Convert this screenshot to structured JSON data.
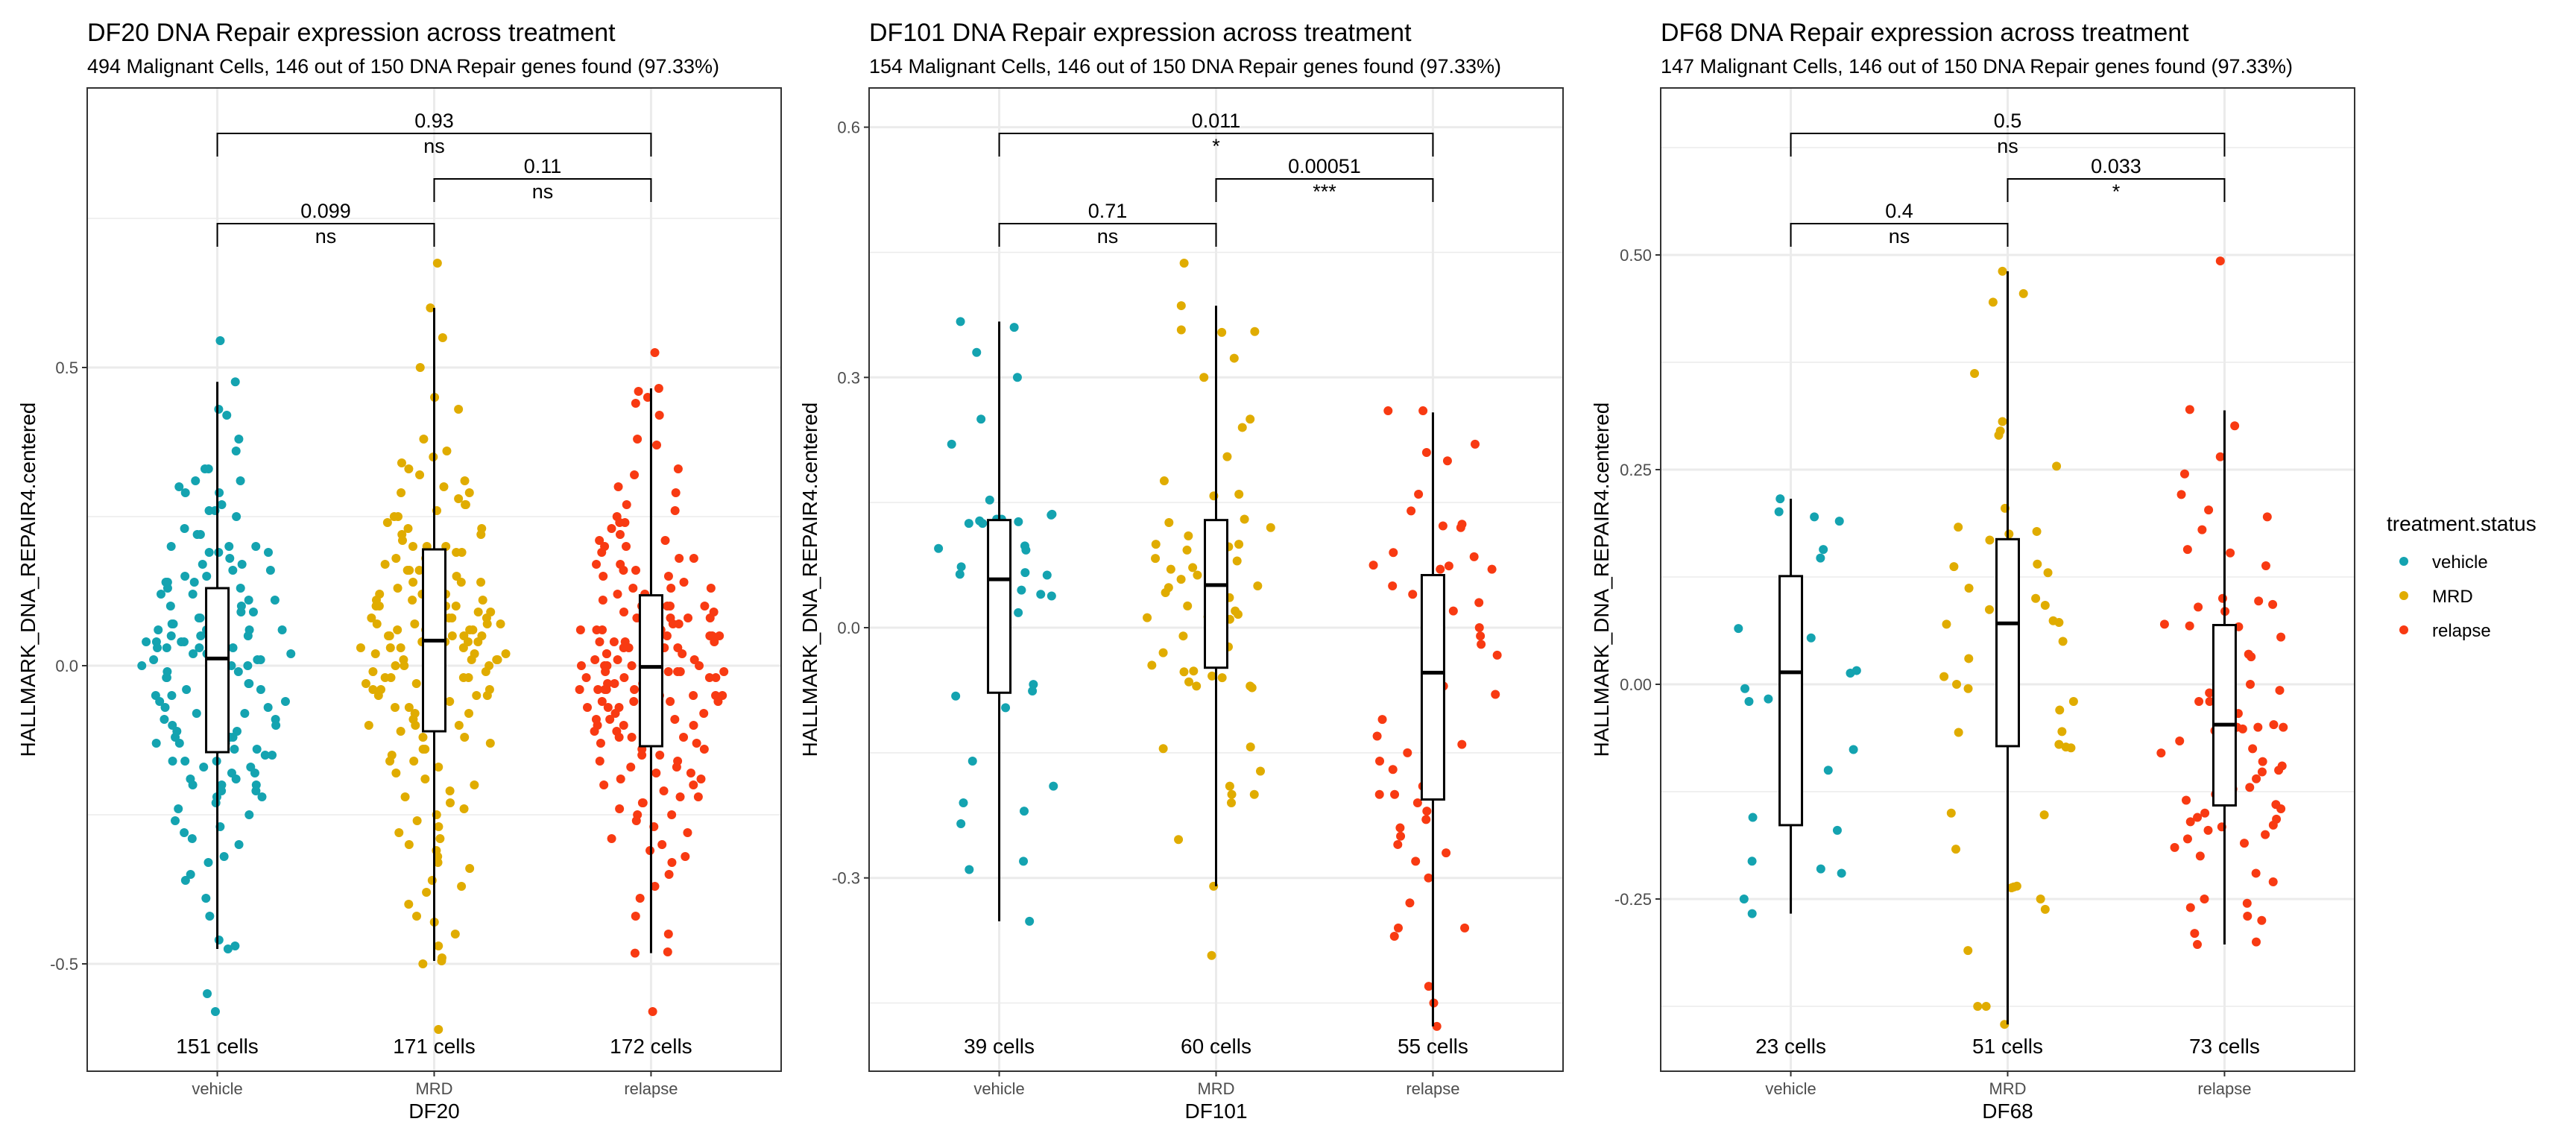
{
  "legend": {
    "title": "treatment.status",
    "items": [
      {
        "label": "vehicle",
        "color": "#14A3B0"
      },
      {
        "label": "MRD",
        "color": "#E0AC00"
      },
      {
        "label": "relapse",
        "color": "#F83A12"
      }
    ]
  },
  "chart_data": [
    {
      "type": "box+jitter",
      "title": "DF20 DNA Repair expression across treatment",
      "subtitle": "494 Malignant Cells, 146 out of 150 DNA Repair genes found (97.33%)",
      "xlabel": "DF20",
      "ylabel": "HALLMARK_DNA_REPAIR4.centered",
      "categories": [
        "vehicle",
        "MRD",
        "relapse"
      ],
      "ylim": [
        -0.61,
        0.93
      ],
      "yticks": [
        -0.5,
        0.0,
        0.5
      ],
      "ytick_labels": [
        "-0.5",
        "0.0",
        "0.5"
      ],
      "minor_grid": [
        -0.25,
        0.25,
        0.75
      ],
      "cell_counts": [
        "151 cells",
        "171 cells",
        "172 cells"
      ],
      "boxes": [
        {
          "group": "vehicle",
          "lower_whisker": -0.475,
          "q1": -0.145,
          "median": 0.012,
          "q3": 0.13,
          "upper_whisker": 0.476
        },
        {
          "group": "MRD",
          "lower_whisker": -0.495,
          "q1": -0.11,
          "median": 0.042,
          "q3": 0.195,
          "upper_whisker": 0.6
        },
        {
          "group": "relapse",
          "lower_whisker": -0.482,
          "q1": -0.135,
          "median": -0.002,
          "q3": 0.118,
          "upper_whisker": 0.465
        }
      ],
      "comparisons": [
        {
          "groups": [
            "vehicle",
            "MRD"
          ],
          "p": "0.099",
          "signif": "ns"
        },
        {
          "groups": [
            "MRD",
            "relapse"
          ],
          "p": "0.11",
          "signif": "ns"
        },
        {
          "groups": [
            "vehicle",
            "relapse"
          ],
          "p": "0.93",
          "signif": "ns"
        }
      ],
      "points": {
        "vehicle": [
          0.545,
          0.476,
          0.43,
          0.42,
          0.38,
          0.33,
          0.33,
          0.31,
          0.31,
          0.3,
          0.29,
          0.27,
          0.26,
          0.25,
          0.22,
          0.2,
          0.2,
          0.19,
          0.19,
          0.19,
          0.18,
          0.17,
          0.16,
          0.16,
          0.15,
          0.14,
          0.14,
          0.13,
          0.12,
          0.11,
          0.11,
          0.1,
          0.1,
          0.09,
          0.08,
          0.08,
          0.07,
          0.07,
          0.06,
          0.06,
          0.06,
          0.05,
          0.05,
          0.05,
          0.04,
          0.04,
          0.04,
          0.03,
          0.03,
          0.03,
          0.02,
          0.02,
          0.02,
          0.01,
          0.01,
          0.01,
          0.0,
          0.0,
          -0.01,
          -0.01,
          -0.02,
          -0.03,
          -0.03,
          -0.04,
          -0.05,
          -0.05,
          -0.06,
          -0.07,
          -0.08,
          -0.09,
          -0.1,
          -0.1,
          -0.11,
          -0.12,
          -0.12,
          -0.13,
          -0.13,
          -0.14,
          -0.14,
          -0.15,
          -0.15,
          -0.16,
          -0.16,
          -0.17,
          -0.17,
          -0.18,
          -0.19,
          -0.2,
          -0.2,
          -0.21,
          -0.21,
          -0.22,
          -0.23,
          -0.24,
          -0.26,
          -0.27,
          -0.29,
          -0.3,
          -0.32,
          -0.33,
          -0.35,
          -0.36,
          -0.39,
          -0.42,
          -0.46,
          -0.47,
          -0.475,
          -0.55,
          -0.58,
          0.36,
          0.29,
          0.23,
          0.12,
          0.09,
          -0.02,
          -0.06,
          -0.11,
          -0.18,
          -0.25,
          -0.28,
          0.26,
          0.2,
          0.15,
          0.05,
          0.02,
          -0.08,
          -0.13,
          -0.19,
          0.11,
          0.07,
          -0.04,
          -0.1,
          -0.14,
          -0.2,
          0.17,
          0.13,
          0.0,
          -0.07,
          -0.16,
          0.22,
          0.03,
          -0.03,
          -0.12,
          -0.22,
          0.08,
          -0.09,
          0.14,
          -0.05,
          0.04,
          -0.01,
          0.06
        ],
        "MRD": [
          0.675,
          0.6,
          0.55,
          0.5,
          0.45,
          0.43,
          0.38,
          0.36,
          0.34,
          0.33,
          0.32,
          0.31,
          0.3,
          0.29,
          0.28,
          0.27,
          0.26,
          0.25,
          0.24,
          0.23,
          0.22,
          0.21,
          0.2,
          0.2,
          0.19,
          0.18,
          0.18,
          0.17,
          0.16,
          0.16,
          0.15,
          0.14,
          0.14,
          0.13,
          0.12,
          0.12,
          0.11,
          0.1,
          0.1,
          0.09,
          0.09,
          0.08,
          0.08,
          0.07,
          0.07,
          0.06,
          0.06,
          0.05,
          0.05,
          0.05,
          0.04,
          0.04,
          0.03,
          0.03,
          0.02,
          0.02,
          0.01,
          0.01,
          0.0,
          0.0,
          -0.01,
          -0.02,
          -0.02,
          -0.03,
          -0.04,
          -0.04,
          -0.05,
          -0.06,
          -0.07,
          -0.08,
          -0.09,
          -0.1,
          -0.1,
          -0.11,
          -0.12,
          -0.13,
          -0.14,
          -0.15,
          -0.16,
          -0.17,
          -0.18,
          -0.19,
          -0.2,
          -0.21,
          -0.22,
          -0.23,
          -0.24,
          -0.25,
          -0.26,
          -0.27,
          -0.28,
          -0.29,
          -0.3,
          -0.31,
          -0.32,
          -0.33,
          -0.34,
          -0.36,
          -0.37,
          -0.38,
          -0.4,
          -0.42,
          -0.43,
          -0.45,
          -0.47,
          -0.49,
          -0.495,
          -0.5,
          -0.61,
          0.35,
          0.29,
          0.25,
          0.22,
          0.19,
          0.17,
          0.15,
          0.13,
          0.11,
          0.09,
          0.07,
          0.06,
          0.04,
          0.03,
          0.02,
          0.01,
          -0.01,
          -0.03,
          -0.05,
          -0.06,
          -0.08,
          -0.1,
          -0.12,
          0.27,
          0.23,
          0.2,
          0.16,
          0.12,
          0.08,
          0.05,
          0.0,
          -0.02,
          -0.04,
          -0.07,
          -0.09,
          -0.14,
          -0.16,
          0.14,
          0.1,
          0.06,
          0.03,
          -0.01,
          -0.05,
          0.18,
          0.12,
          0.04,
          -0.03,
          0.08,
          0.02,
          -0.06,
          0.1,
          0.0,
          0.05,
          -0.02,
          0.15,
          0.07,
          0.01,
          0.11
        ],
        "relapse": [
          0.525,
          0.465,
          0.46,
          0.45,
          0.44,
          0.42,
          0.38,
          0.37,
          0.33,
          0.32,
          0.3,
          0.27,
          0.26,
          0.25,
          0.24,
          0.23,
          0.22,
          0.21,
          0.2,
          0.19,
          0.18,
          0.17,
          0.17,
          0.16,
          0.15,
          0.14,
          0.13,
          0.12,
          0.12,
          0.11,
          0.1,
          0.1,
          0.09,
          0.08,
          0.08,
          0.07,
          0.06,
          0.06,
          0.05,
          0.05,
          0.04,
          0.04,
          0.03,
          0.03,
          0.02,
          0.02,
          0.01,
          0.01,
          0.0,
          0.0,
          -0.01,
          -0.01,
          -0.02,
          -0.02,
          -0.03,
          -0.04,
          -0.04,
          -0.05,
          -0.06,
          -0.06,
          -0.07,
          -0.08,
          -0.09,
          -0.1,
          -0.1,
          -0.11,
          -0.12,
          -0.13,
          -0.14,
          -0.15,
          -0.15,
          -0.16,
          -0.17,
          -0.18,
          -0.19,
          -0.2,
          -0.21,
          -0.22,
          -0.23,
          -0.24,
          -0.25,
          -0.26,
          -0.27,
          -0.28,
          -0.3,
          -0.31,
          -0.32,
          -0.33,
          -0.35,
          -0.37,
          -0.39,
          -0.42,
          -0.45,
          -0.48,
          -0.482,
          -0.58,
          0.29,
          0.24,
          0.2,
          0.16,
          0.13,
          0.09,
          0.07,
          0.05,
          0.03,
          0.01,
          -0.01,
          -0.03,
          -0.05,
          -0.07,
          -0.09,
          -0.11,
          -0.13,
          -0.16,
          -0.19,
          -0.22,
          -0.25,
          -0.29,
          0.21,
          0.15,
          0.11,
          0.08,
          0.04,
          0.02,
          0.0,
          -0.02,
          -0.04,
          -0.06,
          -0.08,
          -0.12,
          -0.14,
          -0.17,
          -0.2,
          -0.23,
          0.18,
          0.1,
          0.06,
          0.03,
          0.01,
          -0.01,
          -0.03,
          -0.05,
          -0.07,
          -0.09,
          -0.12,
          -0.18,
          0.13,
          0.08,
          0.04,
          0.0,
          -0.04,
          -0.1,
          0.06,
          0.02,
          -0.02,
          -0.06,
          0.1,
          0.01,
          -0.03,
          0.05,
          -0.01,
          0.03,
          0.0,
          -0.05,
          0.04,
          0.02,
          -0.04
        ]
      }
    },
    {
      "type": "box+jitter",
      "title": "DF101 DNA Repair expression across treatment",
      "subtitle": "154 Malignant Cells, 146 out of 150 DNA Repair genes found (97.33%)",
      "xlabel": "DF101",
      "ylabel": "HALLMARK_DNA_REPAIR4.centered",
      "categories": [
        "vehicle",
        "MRD",
        "relapse"
      ],
      "ylim": [
        -0.54,
        0.68
      ],
      "yticks": [
        -0.3,
        0.0,
        0.3,
        0.6
      ],
      "ytick_labels": [
        "-0.3",
        "0.0",
        "0.3",
        "0.6"
      ],
      "minor_grid": [
        -0.45,
        -0.15,
        0.15,
        0.45
      ],
      "cell_counts": [
        "39 cells",
        "60 cells",
        "55 cells"
      ],
      "boxes": [
        {
          "group": "vehicle",
          "lower_whisker": -0.352,
          "q1": -0.078,
          "median": 0.058,
          "q3": 0.129,
          "upper_whisker": 0.367
        },
        {
          "group": "MRD",
          "lower_whisker": -0.31,
          "q1": -0.048,
          "median": 0.051,
          "q3": 0.129,
          "upper_whisker": 0.386
        },
        {
          "group": "relapse",
          "lower_whisker": -0.478,
          "q1": -0.206,
          "median": -0.054,
          "q3": 0.063,
          "upper_whisker": 0.258
        }
      ],
      "comparisons": [
        {
          "groups": [
            "vehicle",
            "MRD"
          ],
          "p": "0.71",
          "signif": "ns"
        },
        {
          "groups": [
            "MRD",
            "relapse"
          ],
          "p": "0.00051",
          "signif": "***"
        },
        {
          "groups": [
            "vehicle",
            "relapse"
          ],
          "p": "0.011",
          "signif": "*"
        }
      ],
      "points": {
        "vehicle": [
          0.367,
          0.36,
          0.33,
          0.3,
          0.25,
          0.22,
          0.153,
          0.136,
          0.135,
          0.13,
          0.125,
          0.125,
          0.128,
          0.13,
          0.127,
          0.098,
          0.095,
          0.093,
          0.085,
          0.073,
          0.066,
          0.064,
          0.063,
          0.045,
          0.04,
          0.038,
          0.018,
          -0.068,
          -0.082,
          -0.076,
          -0.096,
          -0.16,
          -0.19,
          -0.21,
          -0.22,
          -0.235,
          -0.28,
          -0.29,
          -0.352
        ],
        "MRD": [
          0.437,
          0.386,
          0.354,
          0.357,
          0.355,
          0.323,
          0.3,
          0.25,
          0.24,
          0.205,
          0.176,
          0.16,
          0.158,
          0.13,
          0.126,
          0.12,
          0.1,
          0.11,
          0.097,
          0.1,
          0.093,
          0.083,
          0.08,
          0.072,
          0.07,
          0.058,
          0.05,
          0.048,
          0.042,
          0.036,
          0.026,
          0.012,
          0.02,
          0.01,
          0.013,
          -0.01,
          -0.017,
          -0.023,
          -0.03,
          -0.045,
          -0.052,
          -0.053,
          -0.058,
          -0.06,
          -0.065,
          -0.07,
          -0.07,
          -0.072,
          -0.145,
          -0.143,
          -0.172,
          -0.19,
          -0.2,
          -0.21,
          -0.2,
          -0.254,
          -0.31,
          -0.393,
          0.063,
          0.016
        ],
        "relapse": [
          0.26,
          0.26,
          0.22,
          0.21,
          0.2,
          0.16,
          0.14,
          0.124,
          0.122,
          0.12,
          0.085,
          0.075,
          0.074,
          0.07,
          0.07,
          0.05,
          0.04,
          0.03,
          0.02,
          0.0,
          -0.01,
          -0.02,
          -0.03,
          -0.033,
          -0.05,
          -0.07,
          -0.08,
          -0.1,
          -0.11,
          -0.12,
          -0.13,
          -0.14,
          -0.15,
          -0.16,
          -0.17,
          -0.19,
          -0.2,
          -0.2,
          -0.21,
          -0.22,
          -0.23,
          -0.24,
          -0.25,
          -0.26,
          -0.27,
          -0.28,
          -0.3,
          -0.33,
          -0.36,
          -0.36,
          -0.37,
          -0.43,
          -0.45,
          -0.478,
          0.09
        ]
      }
    },
    {
      "type": "box+jitter",
      "title": "DF68 DNA Repair expression across treatment",
      "subtitle": "147 Malignant Cells, 146 out of 150 DNA Repair genes found (97.33%)",
      "xlabel": "DF68",
      "ylabel": "HALLMARK_DNA_REPAIR4.centered",
      "categories": [
        "vehicle",
        "MRD",
        "relapse"
      ],
      "ylim": [
        -0.41,
        0.69
      ],
      "yticks": [
        -0.25,
        0.0,
        0.25,
        0.5
      ],
      "ytick_labels": [
        "-0.25",
        "0.00",
        "0.25",
        "0.50"
      ],
      "minor_grid": [
        -0.375,
        -0.125,
        0.125,
        0.375,
        0.625
      ],
      "cell_counts": [
        "23 cells",
        "51 cells",
        "73 cells"
      ],
      "boxes": [
        {
          "group": "vehicle",
          "lower_whisker": -0.267,
          "q1": -0.164,
          "median": 0.014,
          "q3": 0.126,
          "upper_whisker": 0.216
        },
        {
          "group": "MRD",
          "lower_whisker": -0.396,
          "q1": -0.072,
          "median": 0.071,
          "q3": 0.169,
          "upper_whisker": 0.481
        },
        {
          "group": "relapse",
          "lower_whisker": -0.303,
          "q1": -0.141,
          "median": -0.047,
          "q3": 0.069,
          "upper_whisker": 0.319
        }
      ],
      "comparisons": [
        {
          "groups": [
            "vehicle",
            "MRD"
          ],
          "p": "0.4",
          "signif": "ns"
        },
        {
          "groups": [
            "MRD",
            "relapse"
          ],
          "p": "0.033",
          "signif": "*"
        },
        {
          "groups": [
            "vehicle",
            "relapse"
          ],
          "p": "0.5",
          "signif": "ns"
        }
      ],
      "points": {
        "vehicle": [
          0.216,
          0.201,
          0.19,
          0.195,
          0.157,
          0.147,
          0.094,
          0.065,
          0.054,
          0.013,
          0.016,
          -0.005,
          -0.02,
          -0.017,
          -0.076,
          -0.1,
          -0.155,
          -0.17,
          -0.206,
          -0.22,
          -0.215,
          -0.25,
          -0.267
        ],
        "MRD": [
          0.481,
          0.455,
          0.445,
          0.362,
          0.306,
          0.295,
          0.29,
          0.254,
          0.205,
          0.183,
          0.178,
          0.175,
          0.168,
          0.16,
          0.156,
          0.137,
          0.13,
          0.115,
          0.112,
          0.092,
          0.087,
          0.074,
          0.072,
          0.07,
          0.07,
          0.009,
          0.0,
          -0.005,
          -0.02,
          -0.055,
          -0.07,
          -0.056,
          -0.073,
          -0.074,
          -0.152,
          -0.15,
          -0.192,
          -0.235,
          -0.236,
          -0.237,
          -0.25,
          -0.262,
          -0.31,
          -0.375,
          -0.375,
          -0.396,
          0.14,
          0.1,
          0.05,
          -0.03,
          0.03
        ],
        "relapse": [
          0.493,
          0.32,
          0.301,
          0.265,
          0.245,
          0.221,
          0.203,
          0.195,
          0.18,
          0.157,
          0.153,
          0.138,
          0.1,
          0.097,
          0.093,
          0.09,
          0.085,
          0.07,
          0.068,
          0.067,
          0.055,
          0.035,
          0.032,
          0.0,
          -0.007,
          -0.02,
          -0.02,
          -0.034,
          -0.05,
          -0.05,
          -0.052,
          -0.047,
          -0.05,
          -0.054,
          -0.064,
          -0.066,
          -0.075,
          -0.08,
          -0.09,
          -0.095,
          -0.1,
          -0.102,
          -0.11,
          -0.12,
          -0.122,
          -0.128,
          -0.13,
          -0.135,
          -0.14,
          -0.145,
          -0.15,
          -0.155,
          -0.157,
          -0.16,
          -0.164,
          -0.166,
          -0.17,
          -0.175,
          -0.18,
          -0.185,
          -0.19,
          -0.2,
          -0.22,
          -0.23,
          -0.25,
          -0.255,
          -0.26,
          -0.27,
          -0.275,
          -0.29,
          -0.3,
          -0.303,
          -0.01
        ]
      }
    }
  ]
}
